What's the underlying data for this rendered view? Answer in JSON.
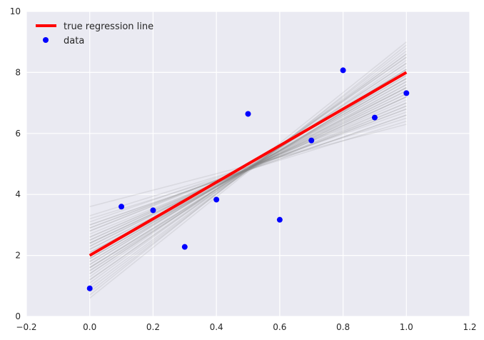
{
  "chart_data": {
    "type": "scatter",
    "title": "",
    "xlabel": "",
    "ylabel": "",
    "xlim": [
      -0.2,
      1.2
    ],
    "ylim": [
      0,
      10
    ],
    "xticks": [
      -0.2,
      0.0,
      0.2,
      0.4,
      0.6,
      0.8,
      1.0,
      1.2
    ],
    "yticks": [
      0,
      2,
      4,
      6,
      8,
      10
    ],
    "xtick_labels": [
      "−0.2",
      "0.0",
      "0.2",
      "0.4",
      "0.6",
      "0.8",
      "1.0",
      "1.2"
    ],
    "ytick_labels": [
      "0",
      "2",
      "4",
      "6",
      "8",
      "10"
    ],
    "grid": true,
    "legend": {
      "position": "top-left",
      "entries": [
        {
          "label": "true regression line",
          "kind": "line",
          "color": "#ff0000"
        },
        {
          "label": "data",
          "kind": "marker",
          "color": "#0000ff"
        }
      ]
    },
    "series": [
      {
        "name": "data",
        "kind": "scatter",
        "color": "#0000ff",
        "x": [
          0.0,
          0.1,
          0.2,
          0.3,
          0.4,
          0.5,
          0.6,
          0.7,
          0.8,
          0.9,
          1.0
        ],
        "y": [
          0.92,
          3.6,
          3.48,
          2.28,
          3.83,
          6.64,
          3.17,
          5.77,
          8.07,
          6.52,
          7.32
        ]
      },
      {
        "name": "true regression line",
        "kind": "line",
        "color": "#ff0000",
        "x": [
          0.0,
          1.0
        ],
        "y": [
          2.0,
          8.0
        ]
      }
    ],
    "posterior_lines": {
      "color": "#808080",
      "x": [
        0.0,
        1.0
      ],
      "y0": [
        2.1,
        1.5,
        2.8,
        1.9,
        2.4,
        1.2,
        3.0,
        2.0,
        1.7,
        2.6,
        1.4,
        2.2,
        0.6,
        3.6,
        1.8,
        2.5,
        1.3,
        2.9,
        2.3,
        1.6,
        3.3,
        0.9,
        2.7,
        1.1,
        2.0,
        3.1,
        1.9,
        2.4,
        1.5,
        2.2,
        0.8,
        2.6,
        1.8,
        3.2,
        1.0,
        2.3,
        1.6,
        2.9,
        2.1,
        1.4,
        2.5,
        1.7,
        3.0,
        1.2,
        2.0,
        2.8,
        1.9,
        0.7,
        2.4,
        1.6
      ],
      "y1": [
        7.5,
        8.0,
        7.0,
        7.8,
        7.3,
        8.4,
        6.6,
        7.7,
        8.1,
        7.1,
        8.3,
        7.4,
        8.9,
        6.3,
        7.9,
        7.2,
        8.5,
        6.8,
        7.5,
        8.0,
        6.5,
        8.7,
        6.9,
        8.6,
        7.6,
        6.7,
        7.8,
        7.3,
        8.2,
        7.5,
        8.8,
        7.0,
        7.9,
        6.4,
        8.6,
        7.4,
        8.0,
        6.8,
        7.6,
        8.3,
        7.2,
        8.1,
        6.6,
        8.5,
        7.7,
        6.9,
        7.8,
        9.0,
        7.2,
        8.1
      ]
    }
  }
}
